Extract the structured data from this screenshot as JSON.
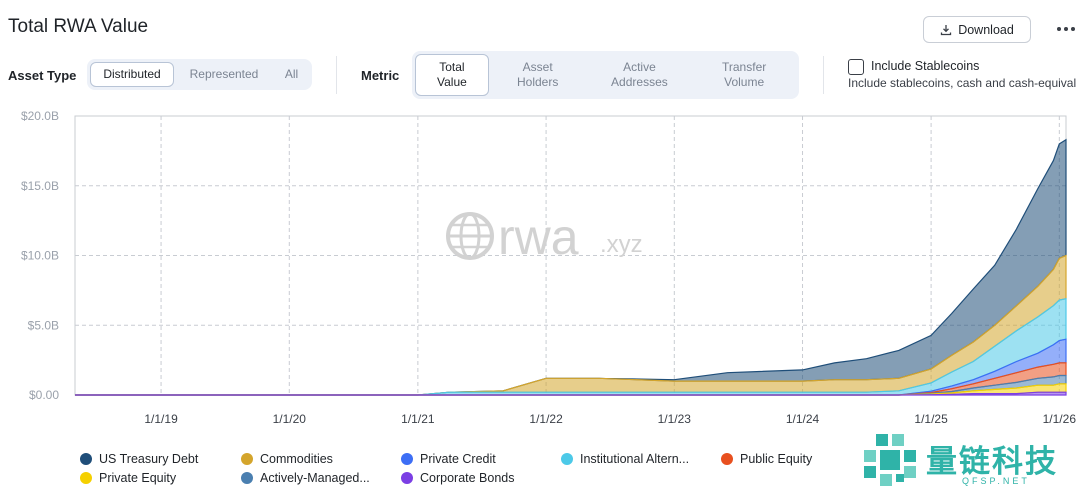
{
  "header": {
    "title": "Total RWA Value",
    "download_label": "Download"
  },
  "controls": {
    "asset_type_label": "Asset Type",
    "asset_type_options": [
      "Distributed",
      "Represented",
      "All"
    ],
    "asset_type_selected": "Distributed",
    "metric_label": "Metric",
    "metric_options": [
      {
        "line1": "Total",
        "line2": "Value"
      },
      {
        "line1": "Asset",
        "line2": "Holders"
      },
      {
        "line1": "Active",
        "line2": "Addresses"
      },
      {
        "line1": "Transfer",
        "line2": "Volume"
      }
    ],
    "metric_selected": "Total Value",
    "stablecoins_label": "Include Stablecoins",
    "stablecoins_checked": false,
    "stablecoins_desc": "Include stablecoins, cash and cash-equival"
  },
  "watermark": {
    "text_main": "rwa",
    "text_suffix": ".xyz"
  },
  "brand": {
    "name": "量链科技",
    "sub": "QFSP.NET"
  },
  "colors": {
    "us_treasury": "#1f4e79",
    "commodities": "#d4a52c",
    "private_credit": "#3d6ef5",
    "institutional": "#4cc9e8",
    "public_equity": "#e8501f",
    "private_equity": "#f5d000",
    "actively_managed": "#4a7fb0",
    "corporate_bonds": "#7b3fe4"
  },
  "chart_data": {
    "type": "area",
    "stacked": true,
    "x": [
      "2018-05-01",
      "2019-01-01",
      "2020-01-01",
      "2021-01-01",
      "2021-04-01",
      "2021-09-01",
      "2022-01-01",
      "2022-06-01",
      "2023-01-01",
      "2023-06-01",
      "2024-01-01",
      "2024-04-01",
      "2024-07-01",
      "2024-10-01",
      "2025-01-01",
      "2025-03-01",
      "2025-05-01",
      "2025-07-01",
      "2025-09-01",
      "2025-11-01",
      "2025-12-15",
      "2026-01-01",
      "2026-01-20"
    ],
    "series": [
      {
        "name": "US Treasury Debt",
        "color_key": "us_treasury",
        "values": [
          0,
          0,
          0,
          0,
          0,
          0,
          0,
          0,
          0.1,
          0.6,
          0.8,
          1.2,
          1.5,
          2.0,
          2.4,
          3.0,
          3.8,
          4.3,
          5.5,
          7.0,
          7.8,
          8.2,
          8.3
        ]
      },
      {
        "name": "Commodities",
        "color_key": "commodities",
        "values": [
          0,
          0,
          0,
          0,
          0,
          0.1,
          1.0,
          1.0,
          0.8,
          0.8,
          0.8,
          0.9,
          0.9,
          0.9,
          1.0,
          1.2,
          1.4,
          1.5,
          1.8,
          2.2,
          2.6,
          3.0,
          3.1
        ]
      },
      {
        "name": "Private Credit",
        "color_key": "private_credit",
        "values": [
          0,
          0,
          0,
          0,
          0,
          0,
          0,
          0,
          0,
          0,
          0,
          0,
          0,
          0,
          0.1,
          0.2,
          0.3,
          0.5,
          0.8,
          1.0,
          1.4,
          1.6,
          1.7
        ]
      },
      {
        "name": "Institutional Alternative Funds",
        "color_key": "institutional",
        "values": [
          0,
          0,
          0,
          0,
          0.2,
          0.2,
          0.2,
          0.2,
          0.2,
          0.2,
          0.2,
          0.2,
          0.2,
          0.3,
          0.6,
          1.0,
          1.3,
          1.8,
          2.2,
          2.6,
          2.8,
          2.9,
          2.9
        ]
      },
      {
        "name": "Public Equity",
        "color_key": "public_equity",
        "values": [
          0,
          0,
          0,
          0,
          0,
          0,
          0,
          0,
          0,
          0,
          0,
          0,
          0,
          0,
          0.05,
          0.2,
          0.3,
          0.5,
          0.7,
          0.8,
          0.9,
          0.9,
          0.9
        ]
      },
      {
        "name": "Private Equity",
        "color_key": "private_equity",
        "values": [
          0,
          0,
          0,
          0,
          0,
          0,
          0,
          0,
          0,
          0,
          0,
          0,
          0,
          0,
          0.05,
          0.1,
          0.2,
          0.3,
          0.4,
          0.5,
          0.5,
          0.6,
          0.6
        ]
      },
      {
        "name": "Actively-Managed Strategies",
        "color_key": "actively_managed",
        "values": [
          0,
          0,
          0,
          0,
          0,
          0,
          0,
          0,
          0,
          0,
          0,
          0,
          0,
          0,
          0.05,
          0.1,
          0.2,
          0.3,
          0.4,
          0.5,
          0.6,
          0.6,
          0.6
        ]
      },
      {
        "name": "Corporate Bonds",
        "color_key": "corporate_bonds",
        "values": [
          0,
          0,
          0,
          0,
          0,
          0,
          0,
          0,
          0,
          0,
          0,
          0,
          0,
          0,
          0.02,
          0.05,
          0.1,
          0.1,
          0.1,
          0.2,
          0.2,
          0.2,
          0.2
        ]
      }
    ],
    "legend": {
      "labels": [
        "US Treasury Debt",
        "Commodities",
        "Private Credit",
        "Institutional Altern...",
        "Public Equity",
        "Private Equity",
        "Actively-Managed...",
        "Corporate Bonds"
      ],
      "placement": "bottom"
    },
    "y_ticks": [
      "$20.0B",
      "$15.0B",
      "$10.0B",
      "$5.0B",
      "$0.00"
    ],
    "y_tick_values": [
      20,
      15,
      10,
      5,
      0
    ],
    "x_ticks": [
      "1/1/19",
      "1/1/20",
      "1/1/21",
      "1/1/22",
      "1/1/23",
      "1/1/24",
      "1/1/25",
      "1/1/26"
    ],
    "x_tick_dates": [
      "2019-01-01",
      "2020-01-01",
      "2021-01-01",
      "2022-01-01",
      "2023-01-01",
      "2024-01-01",
      "2025-01-01",
      "2026-01-01"
    ],
    "ylim": [
      0,
      20
    ],
    "xlim": [
      "2018-05-01",
      "2026-01-20"
    ],
    "grid": true
  }
}
